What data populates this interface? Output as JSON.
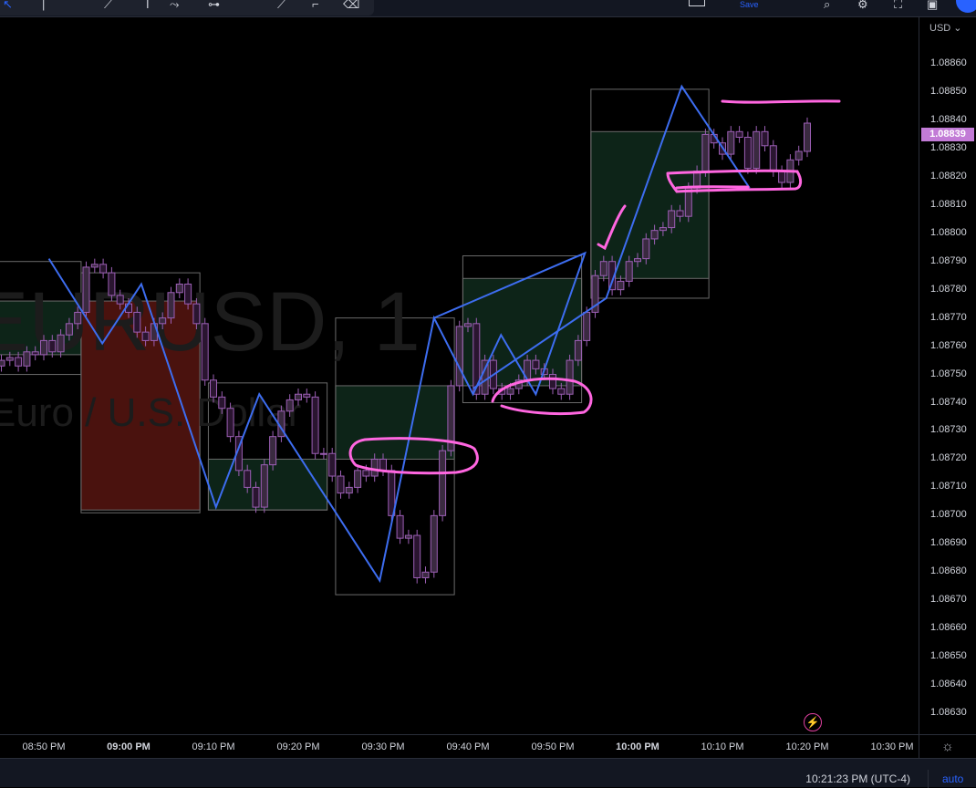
{
  "toolbar": {
    "save_label": "Save",
    "left_icons": [
      "cursor-icon",
      "vertical-line-icon",
      "trend-line-icon",
      "text-cursor-icon",
      "path-icon",
      "measure-icon",
      "brush-icon",
      "pen-icon",
      "eraser-icon"
    ],
    "right_icons": [
      "layout-icon",
      "search-icon",
      "gear-icon",
      "fullscreen-icon",
      "camera-icon",
      "publish-icon"
    ]
  },
  "watermark": {
    "symbol": "EURUSD, 1",
    "description": "Euro / U.S. Dollar"
  },
  "price_axis": {
    "currency": "USD",
    "labels": [
      "1.08860",
      "1.08850",
      "1.08840",
      "1.08830",
      "1.08820",
      "1.08810",
      "1.08800",
      "1.08790",
      "1.08780",
      "1.08770",
      "1.08760",
      "1.08750",
      "1.08740",
      "1.08730",
      "1.08720",
      "1.08710",
      "1.08700",
      "1.08690",
      "1.08680",
      "1.08670",
      "1.08660",
      "1.08650",
      "1.08640",
      "1.08630"
    ],
    "last_price": "1.08839"
  },
  "time_axis": {
    "labels": [
      {
        "text": "08:50 PM",
        "bold": false
      },
      {
        "text": "09:00 PM",
        "bold": true
      },
      {
        "text": "09:10 PM",
        "bold": false
      },
      {
        "text": "09:20 PM",
        "bold": false
      },
      {
        "text": "09:30 PM",
        "bold": false
      },
      {
        "text": "09:40 PM",
        "bold": false
      },
      {
        "text": "09:50 PM",
        "bold": false
      },
      {
        "text": "10:00 PM",
        "bold": true
      },
      {
        "text": "10:10 PM",
        "bold": false
      },
      {
        "text": "10:20 PM",
        "bold": false
      },
      {
        "text": "10:30 PM",
        "bold": false
      }
    ]
  },
  "status_bar": {
    "clock": "10:21:23 PM (UTC-4)",
    "scale_mode": "auto"
  },
  "colors": {
    "candle": "#9c5fb5",
    "zigzag": "#3d6df0",
    "annotation": "#ff66e0",
    "green_zone": "#0d2418",
    "red_zone": "#4a120e",
    "box_border": "#6a6a6a",
    "last_price": "#c27bd6",
    "accent": "#2962ff"
  },
  "chart_data": {
    "type": "candlestick",
    "symbol": "EURUSD",
    "interval": "1 minute",
    "start_time": "08:45 PM",
    "ylim": [
      1.08625,
      1.08865
    ],
    "closes": [
      1.08755,
      1.08756,
      1.08753,
      1.08758,
      1.08757,
      1.08762,
      1.08758,
      1.08764,
      1.08768,
      1.08772,
      1.08788,
      1.08789,
      1.08786,
      1.08778,
      1.08775,
      1.08772,
      1.08765,
      1.08762,
      1.08768,
      1.0877,
      1.08779,
      1.08782,
      1.08775,
      1.08768,
      1.08748,
      1.08742,
      1.08738,
      1.08728,
      1.08716,
      1.0871,
      1.08703,
      1.08718,
      1.08728,
      1.08737,
      1.08741,
      1.08743,
      1.08742,
      1.08722,
      1.08722,
      1.08714,
      1.08708,
      1.0871,
      1.08716,
      1.08714,
      1.0872,
      1.08716,
      1.087,
      1.08692,
      1.08693,
      1.08678,
      1.0868,
      1.087,
      1.08723,
      1.08746,
      1.08767,
      1.08768,
      1.08743,
      1.08755,
      1.08745,
      1.08743,
      1.08745,
      1.08748,
      1.08755,
      1.08752,
      1.0875,
      1.08745,
      1.08743,
      1.08755,
      1.08762,
      1.08772,
      1.08785,
      1.0879,
      1.0878,
      1.08783,
      1.0879,
      1.08791,
      1.08798,
      1.08801,
      1.08802,
      1.08808,
      1.08806,
      1.08816,
      1.08822,
      1.08835,
      1.08832,
      1.08828,
      1.08836,
      1.08834,
      1.08823,
      1.08836,
      1.08831,
      1.08822,
      1.08818,
      1.08826,
      1.08829,
      1.08839
    ],
    "boxes": [
      {
        "t0": -4.6,
        "t1": 9.4,
        "top": 1.0879,
        "bottom": 1.0875,
        "zone": "green",
        "zone_top": 1.08776,
        "zone_bottom": 1.08757
      },
      {
        "t0": 9.4,
        "t1": 23.4,
        "top": 1.08786,
        "bottom": 1.08701,
        "zone": "red",
        "zone_top": 1.08776,
        "zone_bottom": 1.08702
      },
      {
        "t0": 24.4,
        "t1": 38.4,
        "top": 1.08747,
        "bottom": 1.08702,
        "zone": "green",
        "zone_top": 1.0872,
        "zone_bottom": 1.08702
      },
      {
        "t0": 39.4,
        "t1": 53.4,
        "top": 1.0877,
        "bottom": 1.08672,
        "zone": "green",
        "zone_top": 1.08746,
        "zone_bottom": 1.0872
      },
      {
        "t0": 54.4,
        "t1": 68.4,
        "top": 1.08792,
        "bottom": 1.0874,
        "zone": "green",
        "zone_top": 1.08784,
        "zone_bottom": 1.08746
      },
      {
        "t0": 69.5,
        "t1": 83.4,
        "top": 1.08851,
        "bottom": 1.08777,
        "zone": "green",
        "zone_top": 1.08836,
        "zone_bottom": 1.08784
      }
    ],
    "zigzag": [
      [
        5.6,
        1.08791
      ],
      [
        11.9,
        1.08761
      ],
      [
        16.5,
        1.08782
      ],
      [
        25.3,
        1.08703
      ],
      [
        30.4,
        1.08743
      ],
      [
        44.6,
        1.08677
      ],
      [
        51,
        1.0877
      ],
      [
        55.6,
        1.08743
      ],
      [
        58.9,
        1.08764
      ],
      [
        63,
        1.08743
      ],
      [
        68.8,
        1.08793
      ],
      [
        51,
        1.0877
      ]
    ],
    "zigzag2": [
      [
        55.6,
        1.08745
      ],
      [
        71.3,
        1.08777
      ],
      [
        80.2,
        1.08852
      ],
      [
        88.2,
        1.08816
      ]
    ]
  }
}
